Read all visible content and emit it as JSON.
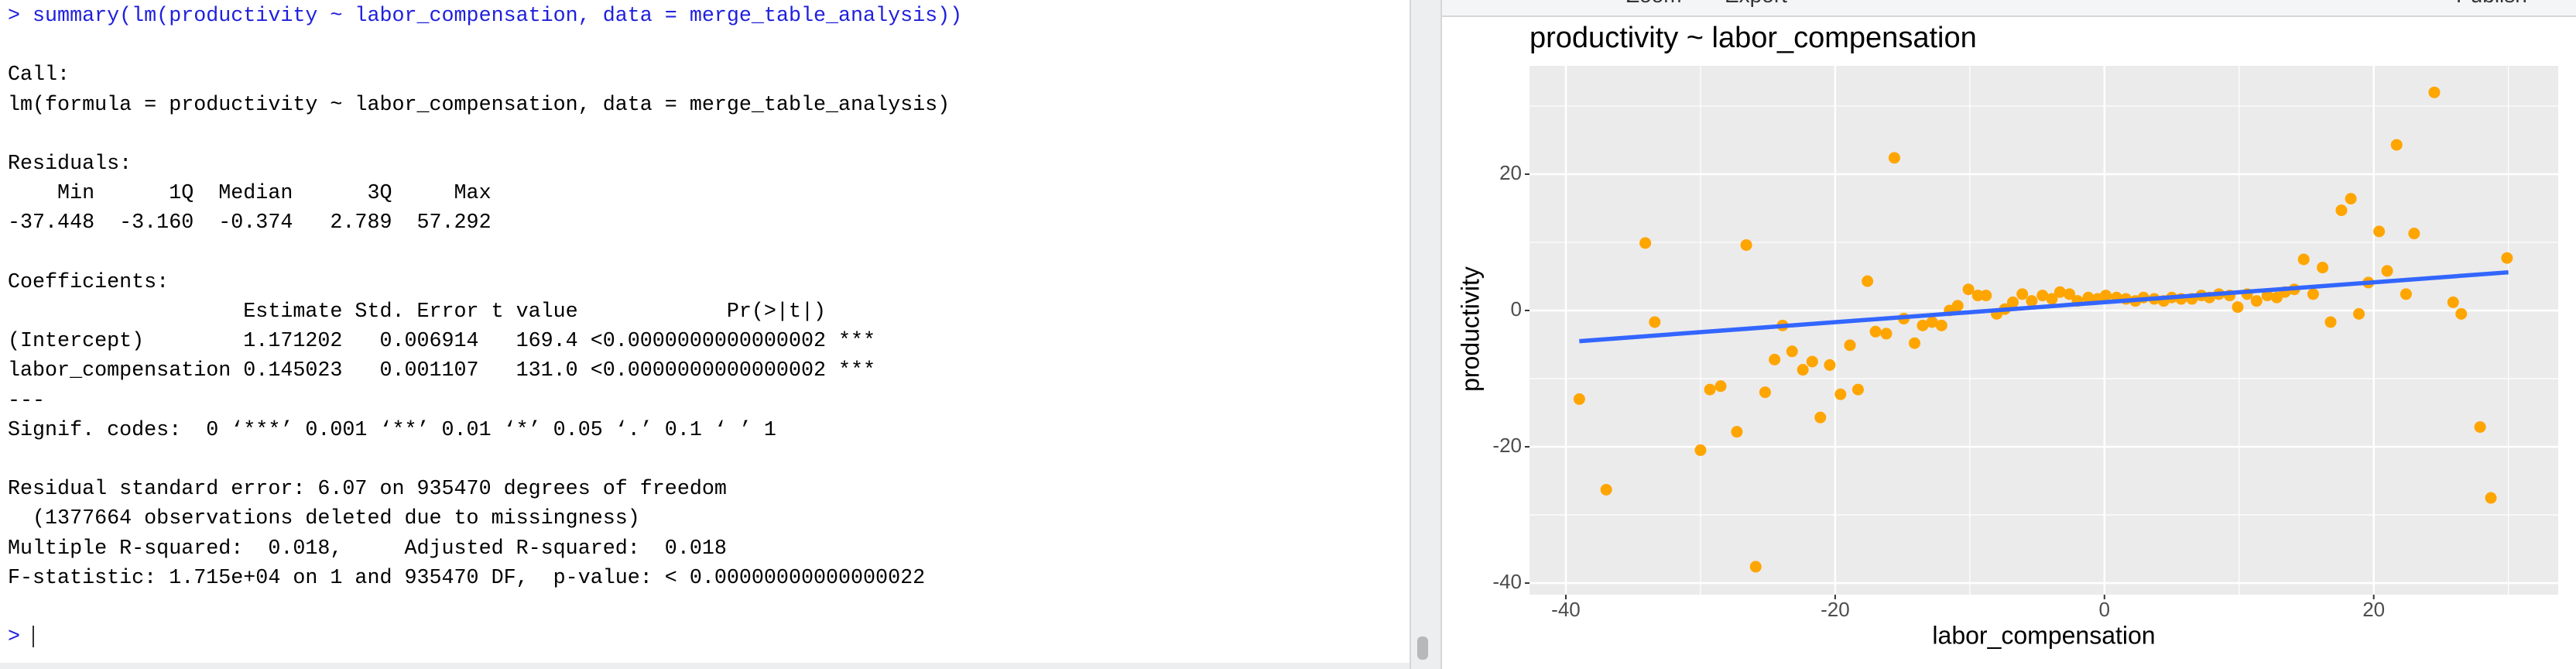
{
  "console": {
    "prompt": ">",
    "command": "summary(lm(productivity ~ labor_compensation, data = merge_table_analysis))",
    "output": [
      [
        "Call:",
        "lm(formula = productivity ~ labor_compensation, data = merge_table_analysis)"
      ],
      [
        "Residuals:",
        "    Min      1Q  Median      3Q     Max",
        "-37.448  -3.160  -0.374   2.789  57.292"
      ],
      [
        "Coefficients:",
        "                   Estimate Std. Error t value            Pr(>|t|)",
        "(Intercept)        1.171202   0.006914   169.4 <0.0000000000000002 ***",
        "labor_compensation 0.145023   0.001107   131.0 <0.0000000000000002 ***",
        "---",
        "Signif. codes:  0 ‘***’ 0.001 ‘**’ 0.01 ‘*’ 0.05 ‘.’ 0.1 ‘ ’ 1"
      ],
      [
        "Residual standard error: 6.07 on 935470 degrees of freedom",
        "  (1377664 observations deleted due to missingness)",
        "Multiple R-squared:  0.018,\tAdjusted R-squared:  0.018",
        "F-statistic: 1.715e+04 on 1 and 935470 DF,  p-value: < 0.00000000000000022"
      ]
    ]
  },
  "plot_toolbar": {
    "buttons": [
      "Zoom",
      "Export",
      "Publish"
    ]
  },
  "chart_data": {
    "type": "scatter",
    "title": "productivity ~ labor_compensation",
    "x_label": "labor_compensation",
    "y_label": "productivity",
    "xlim": [
      -42.7,
      33.7
    ],
    "ylim": [
      -41.7,
      35.9
    ],
    "xticks": [
      -40,
      -20,
      0,
      20
    ],
    "yticks": [
      -40,
      -20,
      0,
      20
    ],
    "grid": true,
    "color": "#FFA500",
    "x": [
      -39.0,
      -37.0,
      -34.1,
      -33.4,
      -30.0,
      -29.3,
      -28.5,
      -27.3,
      -26.6,
      -25.9,
      -25.2,
      -24.5,
      -23.9,
      -23.2,
      -22.4,
      -21.7,
      -21.1,
      -20.4,
      -19.6,
      -18.9,
      -18.3,
      -17.6,
      -17.0,
      -16.2,
      -15.6,
      -14.9,
      -14.1,
      -13.5,
      -12.8,
      -12.1,
      -11.5,
      -10.9,
      -10.1,
      -9.4,
      -8.8,
      -8.0,
      -7.4,
      -6.8,
      -6.1,
      -5.4,
      -4.6,
      -3.9,
      -3.3,
      -2.6,
      -2.0,
      -1.2,
      -0.5,
      0.1,
      0.9,
      1.6,
      2.3,
      2.9,
      3.7,
      4.4,
      5.0,
      5.7,
      6.5,
      7.2,
      7.8,
      8.5,
      9.3,
      9.9,
      10.6,
      11.3,
      12.1,
      12.8,
      13.4,
      14.1,
      14.8,
      15.5,
      16.2,
      16.8,
      17.6,
      18.3,
      18.9,
      19.6,
      20.4,
      21.0,
      21.7,
      22.4,
      23.0,
      24.5,
      25.9,
      26.5,
      27.9,
      28.7,
      29.9
    ],
    "values": [
      -13.0,
      -26.3,
      9.9,
      -1.7,
      -20.5,
      -11.6,
      -11.1,
      -17.8,
      9.6,
      -37.6,
      -12.0,
      -7.2,
      -2.2,
      -6.0,
      -8.7,
      -7.5,
      -15.7,
      -8.0,
      -12.3,
      -5.1,
      -11.6,
      4.3,
      -3.1,
      -3.4,
      22.4,
      -1.2,
      -4.8,
      -2.2,
      -1.7,
      -2.2,
      0.0,
      0.7,
      3.1,
      2.2,
      2.2,
      -0.5,
      0.2,
      1.2,
      2.4,
      1.4,
      2.2,
      1.7,
      2.7,
      2.4,
      1.4,
      1.9,
      1.7,
      2.2,
      1.9,
      1.7,
      1.4,
      1.9,
      1.7,
      1.4,
      1.9,
      1.7,
      1.7,
      2.2,
      1.9,
      2.4,
      2.2,
      0.5,
      2.4,
      1.4,
      2.2,
      1.9,
      2.7,
      3.1,
      7.5,
      2.4,
      6.3,
      -1.7,
      14.7,
      16.4,
      -0.5,
      4.1,
      11.6,
      5.8,
      24.3,
      2.4,
      11.3,
      32.0,
      1.2,
      -0.5,
      -17.1,
      -27.5,
      7.7
    ],
    "fit": {
      "x": [
        -39.0,
        30.0
      ],
      "values": [
        -4.5,
        5.6
      ],
      "color": "#3366FF"
    }
  }
}
